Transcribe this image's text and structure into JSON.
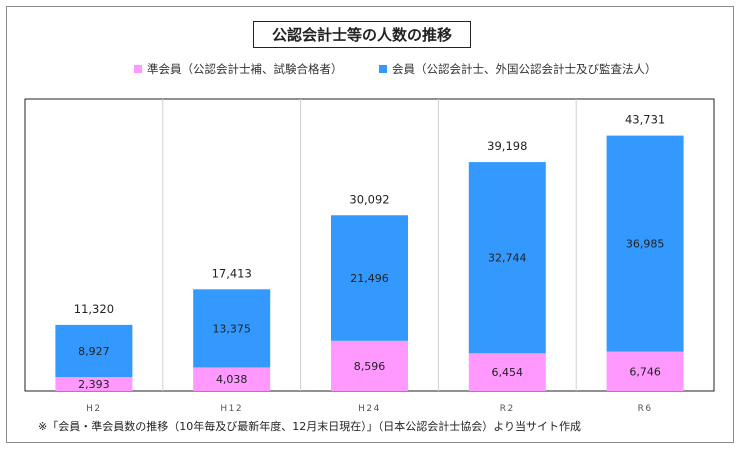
{
  "chart_data": {
    "type": "bar",
    "stacked": true,
    "title": "公認会計士等の人数の推移",
    "categories": [
      "H2",
      "H12",
      "H24",
      "R2",
      "R6"
    ],
    "series": [
      {
        "name": "準会員（公認会計士補、試験合格者）",
        "values": [
          2393,
          4038,
          8596,
          6454,
          6746
        ],
        "color": "#ff99ff"
      },
      {
        "name": "会員（公認会計士、外国公認会計士及び監査法人）",
        "values": [
          8927,
          13375,
          21496,
          32744,
          36985
        ],
        "color": "#3399ff"
      }
    ],
    "totals": [
      11320,
      17413,
      30092,
      39198,
      43731
    ],
    "ylim": [
      0,
      50000
    ],
    "grid": "vertical-separators",
    "legend_position": "top"
  },
  "note": "※「会員・準会員数の推移（10年毎及び最新年度、12月末日現在）」（日本公認会計士協会）より当サイト作成"
}
